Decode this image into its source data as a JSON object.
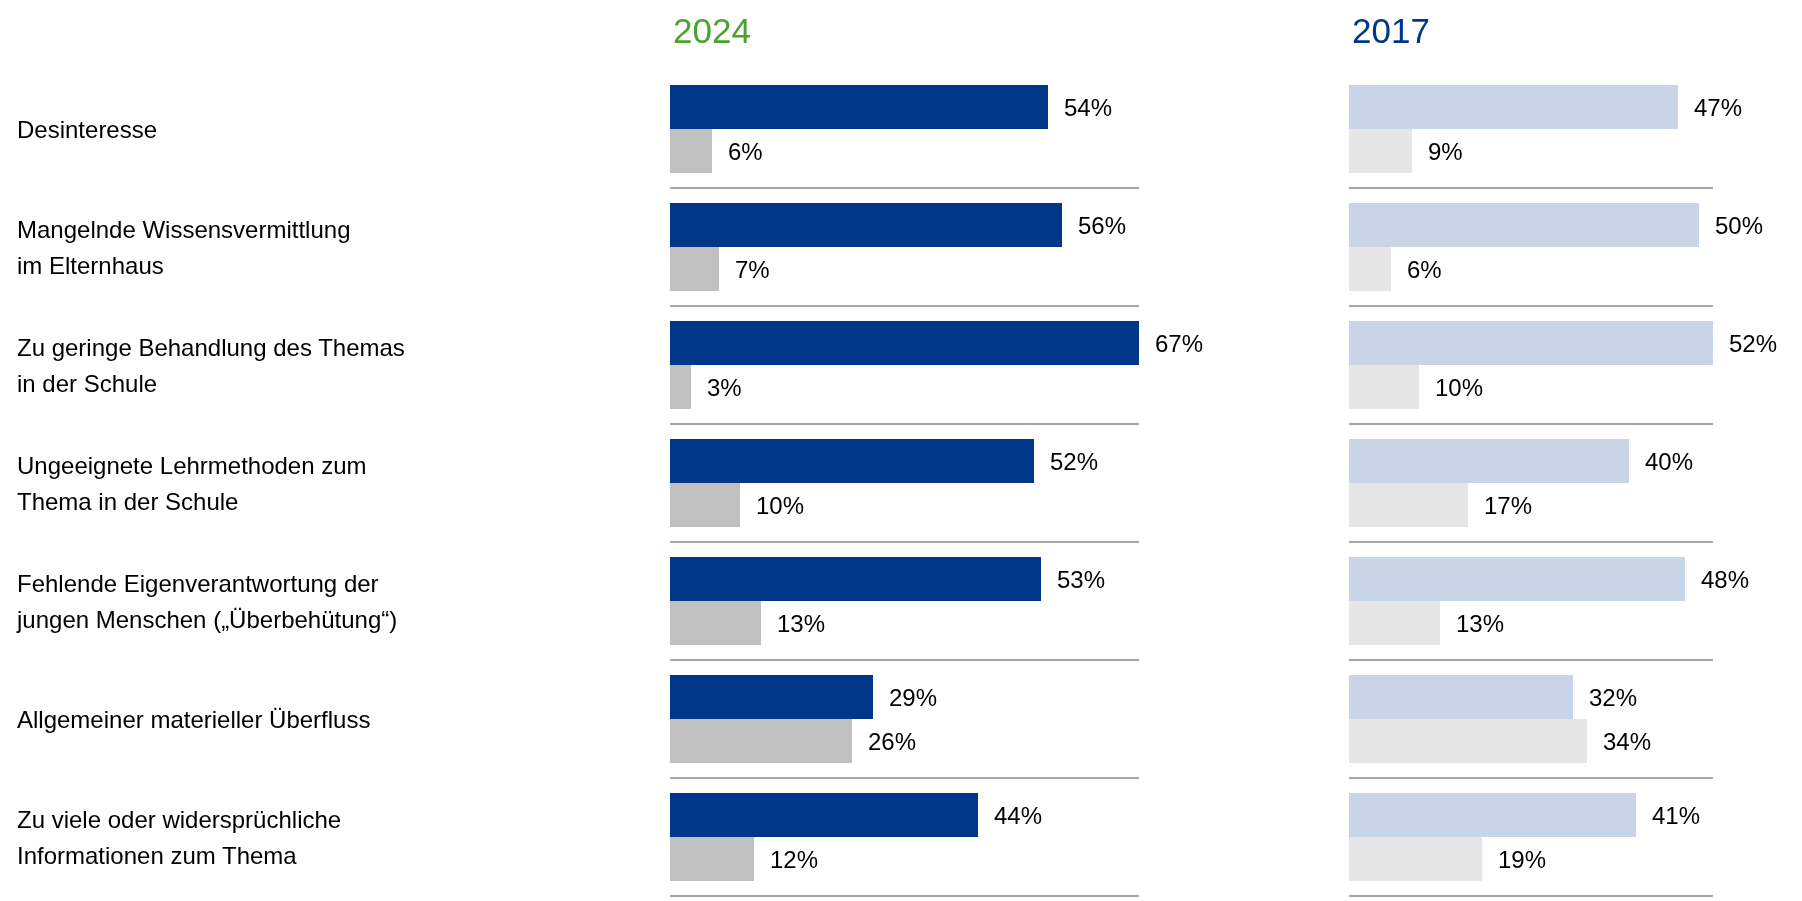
{
  "chart_data": [
    {
      "type": "bar",
      "title": "2024",
      "orientation": "horizontal",
      "grid": "y",
      "tick_labels": "y",
      "categories": [
        "Desinteresse",
        "Mangelnde Wissensvermittlung\nim Elternhaus",
        "Zu geringe Behandlung des Themas\nin der Schule",
        "Ungeeignete Lehrmethoden zum\nThema in der Schule",
        "Fehlende Eigenverantwortung der\njungen Menschen („Überbehütung“)",
        "Allgemeiner materieller Überfluss",
        "Zu viele oder widersprüchliche\nInformationen zum Thema"
      ],
      "series": [
        {
          "color": "#003789",
          "values": [
            54,
            56,
            67,
            52,
            53,
            29,
            44
          ],
          "value_labels": [
            "54%",
            "56%",
            "67%",
            "52%",
            "53%",
            "29%",
            "44%"
          ]
        },
        {
          "color": "#c0c0c0",
          "values": [
            6,
            7,
            3,
            10,
            13,
            26,
            12
          ],
          "value_labels": [
            "6%",
            "7%",
            "3%",
            "10%",
            "13%",
            "26%",
            "12%"
          ]
        }
      ]
    },
    {
      "type": "bar",
      "title": "2017",
      "orientation": "horizontal",
      "grid": "y",
      "tick_labels": false,
      "categories": [
        null,
        null,
        null,
        null,
        null,
        null,
        null
      ],
      "series": [
        {
          "color": "#c9d5e6",
          "values": [
            47,
            50,
            52,
            40,
            48,
            32,
            41
          ],
          "value_labels": [
            "47%",
            "50%",
            "52%",
            "40%",
            "48%",
            "32%",
            "41%"
          ]
        },
        {
          "color": "#e6e6e6",
          "values": [
            9,
            6,
            10,
            17,
            13,
            34,
            19
          ],
          "value_labels": [
            "9%",
            "6%",
            "10%",
            "17%",
            "13%",
            "34%",
            "19%"
          ]
        }
      ]
    }
  ]
}
